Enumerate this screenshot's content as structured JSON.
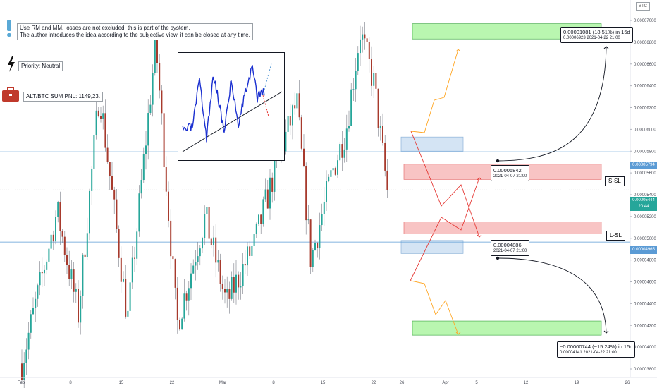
{
  "header": {
    "ticker_label": "BTC"
  },
  "notes": {
    "disclaimer_line1": "Use RM and MM, losses are not excluded, this is part of the system.",
    "disclaimer_line2": "The author introduces the idea according to the subjective view, it can be closed at any time.",
    "priority": "Priority: Neutral",
    "pnl": "ALT/BTC SUM PNL: 1149,23."
  },
  "labels": {
    "s_sl": "S-SL",
    "l_sl": "L-SL"
  },
  "callouts": {
    "upper_target_line1": "0.00001081 (18.51%) in 15d",
    "upper_target_line2": "0.00006923     2021-04-22  21:00",
    "upper_entry_line1": "0.00005842",
    "upper_entry_line2": "2021-04-07 21:00",
    "lower_entry_line1": "0.00004886",
    "lower_entry_line2": "2021-04-07 21:00",
    "lower_target_line1": "−0.00000744 (−15.24%) in 15d",
    "lower_target_line2": "0.00004141     2021-04-22  21:00"
  },
  "price_tags": {
    "upper_line": "0.00005794",
    "current": "0.00005444",
    "current_time": "20:44",
    "lower_line": "0.00004965"
  },
  "colors": {
    "up_candle": "#26a69a",
    "down_candle": "#a73a2d",
    "wick": "#787b86",
    "target_zone": "#b9f6b0",
    "stop_zone": "#f8c4c4",
    "entry_zone": "#d4e4f4",
    "level_line": "#5b9bd5",
    "current_price": "#26a69a",
    "red_path": "#e53935",
    "orange_path": "#ffa726"
  },
  "chart_data": {
    "type": "candlestick",
    "symbol": "ALT/BTC",
    "y_axis_ticks": [
      "0.00007000",
      "0.00006800",
      "0.00006600",
      "0.00006400",
      "0.00006200",
      "0.00006000",
      "0.00005800",
      "0.00005600",
      "0.00005400",
      "0.00005200",
      "0.00005000",
      "0.00004800",
      "0.00004600",
      "0.00004400",
      "0.00004200",
      "0.00004000",
      "0.00003800"
    ],
    "x_axis_ticks": [
      "Feb",
      "8",
      "15",
      "22",
      "Mar",
      "8",
      "15",
      "22",
      "26",
      "Apr",
      "5",
      "12",
      "19",
      "26"
    ],
    "ylim": [
      3.7e-05,
      7.15e-05
    ],
    "levels": [
      5.794e-05,
      4.965e-05
    ],
    "current_price": 5.444e-05,
    "swing_points": [
      {
        "date": "Feb 1",
        "value": 3.85e-05
      },
      {
        "date": "Feb 6",
        "value": 5.25e-05
      },
      {
        "date": "Feb 9",
        "value": 4.3e-05
      },
      {
        "date": "Feb 12",
        "value": 6.35e-05
      },
      {
        "date": "Feb 16",
        "value": 4.25e-05
      },
      {
        "date": "Feb 20",
        "value": 6.8e-05
      },
      {
        "date": "Feb 23",
        "value": 4.2e-05
      },
      {
        "date": "Feb 27",
        "value": 5.2e-05
      },
      {
        "date": "Mar 2",
        "value": 4.4e-05
      },
      {
        "date": "Mar 6",
        "value": 4.95e-05
      },
      {
        "date": "Mar 9",
        "value": 5.65e-05
      },
      {
        "date": "Mar 12",
        "value": 6.25e-05
      },
      {
        "date": "Mar 14",
        "value": 4.8e-05
      },
      {
        "date": "Mar 17",
        "value": 5.6e-05
      },
      {
        "date": "Mar 19",
        "value": 6e-05
      },
      {
        "date": "Mar 21",
        "value": 6.9e-05
      },
      {
        "date": "Mar 23",
        "value": 6.4e-05
      },
      {
        "date": "Mar 25",
        "value": 5.35e-05
      }
    ],
    "zones": [
      {
        "type": "target-long",
        "range": [
          6.83e-05,
          6.97e-05
        ]
      },
      {
        "type": "entry",
        "range": [
          5.8e-05,
          5.93e-05
        ]
      },
      {
        "type": "stop-short",
        "range": [
          5.54e-05,
          5.68e-05
        ]
      },
      {
        "type": "stop-long",
        "range": [
          5.04e-05,
          5.15e-05
        ]
      },
      {
        "type": "entry",
        "range": [
          4.86e-05,
          4.98e-05
        ]
      },
      {
        "type": "target-short",
        "range": [
          4.11e-05,
          4.24e-05
        ]
      }
    ]
  }
}
